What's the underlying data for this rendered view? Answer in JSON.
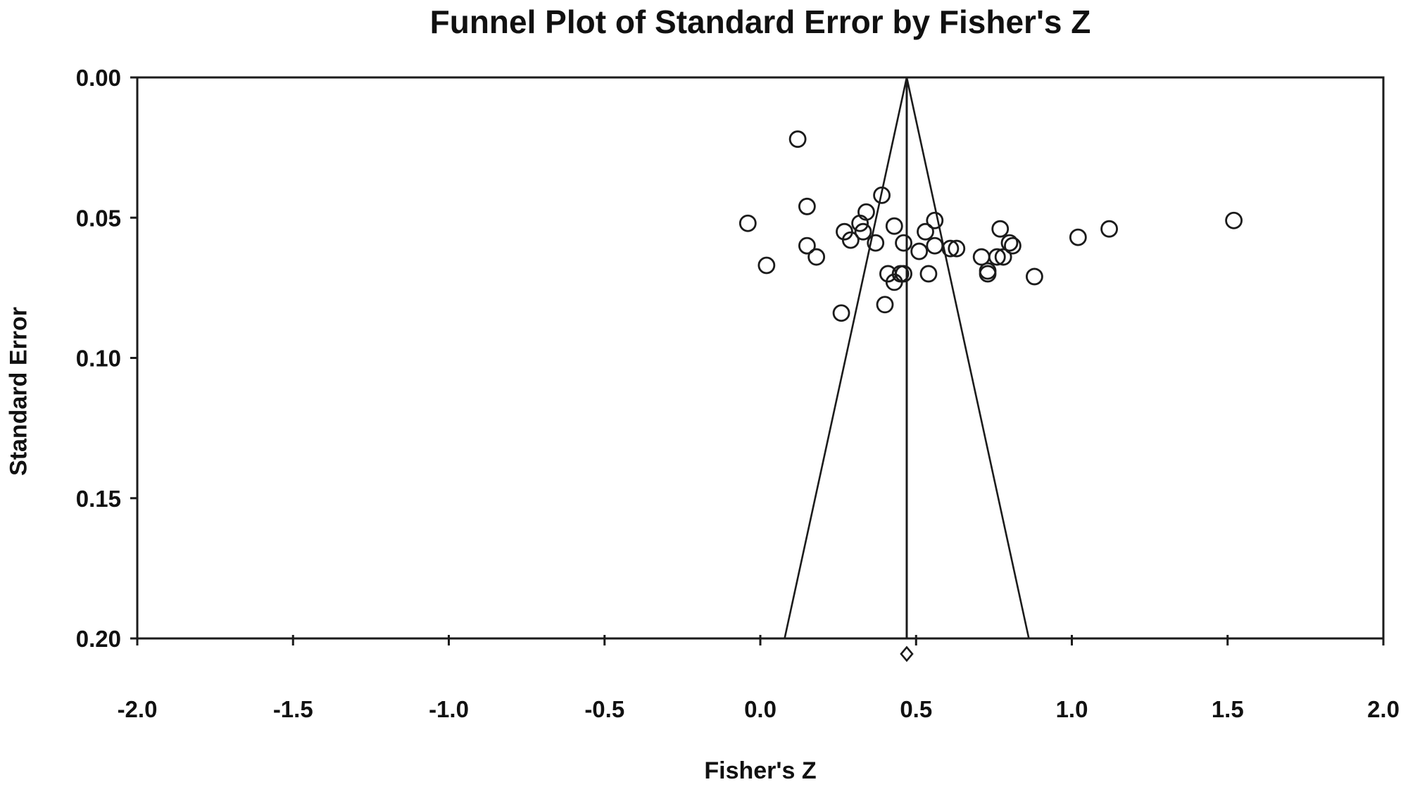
{
  "figure": {
    "background": "#ffffff",
    "stroke_color": "#1b1b1b"
  },
  "chart_data": {
    "type": "scatter",
    "subtype": "funnel-plot",
    "title": "Funnel Plot of Standard Error by Fisher's Z",
    "xlabel": "Fisher's Z",
    "ylabel": "Standard Error",
    "xlim": [
      -2.0,
      2.0
    ],
    "ylim": [
      0.0,
      0.2
    ],
    "y_inverted": true,
    "grid": false,
    "legend": false,
    "x_tick_values": [
      -2.0,
      -1.5,
      -1.0,
      -0.5,
      0.0,
      0.5,
      1.0,
      1.5,
      2.0
    ],
    "x_tick_labels": [
      "-2.0",
      "-1.5",
      "-1.0",
      "-0.5",
      "0.0",
      "0.5",
      "1.0",
      "1.5",
      "2.0"
    ],
    "y_tick_values": [
      0.0,
      0.05,
      0.1,
      0.15,
      0.2
    ],
    "y_tick_labels": [
      "0.00",
      "0.05",
      "0.10",
      "0.15",
      "0.20"
    ],
    "funnel": {
      "mean_fishers_z": 0.47,
      "ci_multiplier": 1.96,
      "se_top": 0.0,
      "se_bottom": 0.2,
      "has_center_line": true
    },
    "summary_diamond": {
      "mean_fishers_z": 0.47,
      "position": "below-x-axis"
    },
    "point_format": [
      "fishers_z",
      "standard_error"
    ],
    "points": [
      [
        0.12,
        0.022
      ],
      [
        0.15,
        0.046
      ],
      [
        -0.04,
        0.052
      ],
      [
        0.15,
        0.06
      ],
      [
        0.18,
        0.064
      ],
      [
        0.02,
        0.067
      ],
      [
        0.26,
        0.084
      ],
      [
        0.34,
        0.048
      ],
      [
        0.32,
        0.052
      ],
      [
        0.33,
        0.055
      ],
      [
        0.27,
        0.055
      ],
      [
        0.29,
        0.058
      ],
      [
        0.37,
        0.059
      ],
      [
        0.39,
        0.042
      ],
      [
        0.43,
        0.053
      ],
      [
        0.46,
        0.059
      ],
      [
        0.56,
        0.051
      ],
      [
        0.53,
        0.055
      ],
      [
        0.56,
        0.06
      ],
      [
        0.51,
        0.062
      ],
      [
        0.61,
        0.061
      ],
      [
        0.63,
        0.061
      ],
      [
        0.54,
        0.07
      ],
      [
        0.41,
        0.07
      ],
      [
        0.43,
        0.073
      ],
      [
        0.45,
        0.07
      ],
      [
        0.46,
        0.07
      ],
      [
        0.4,
        0.081
      ],
      [
        0.77,
        0.054
      ],
      [
        0.8,
        0.059
      ],
      [
        0.81,
        0.06
      ],
      [
        0.71,
        0.064
      ],
      [
        0.76,
        0.064
      ],
      [
        0.78,
        0.064
      ],
      [
        0.73,
        0.069
      ],
      [
        0.73,
        0.07
      ],
      [
        0.88,
        0.071
      ],
      [
        1.02,
        0.057
      ],
      [
        1.12,
        0.054
      ],
      [
        1.52,
        0.051
      ]
    ]
  }
}
